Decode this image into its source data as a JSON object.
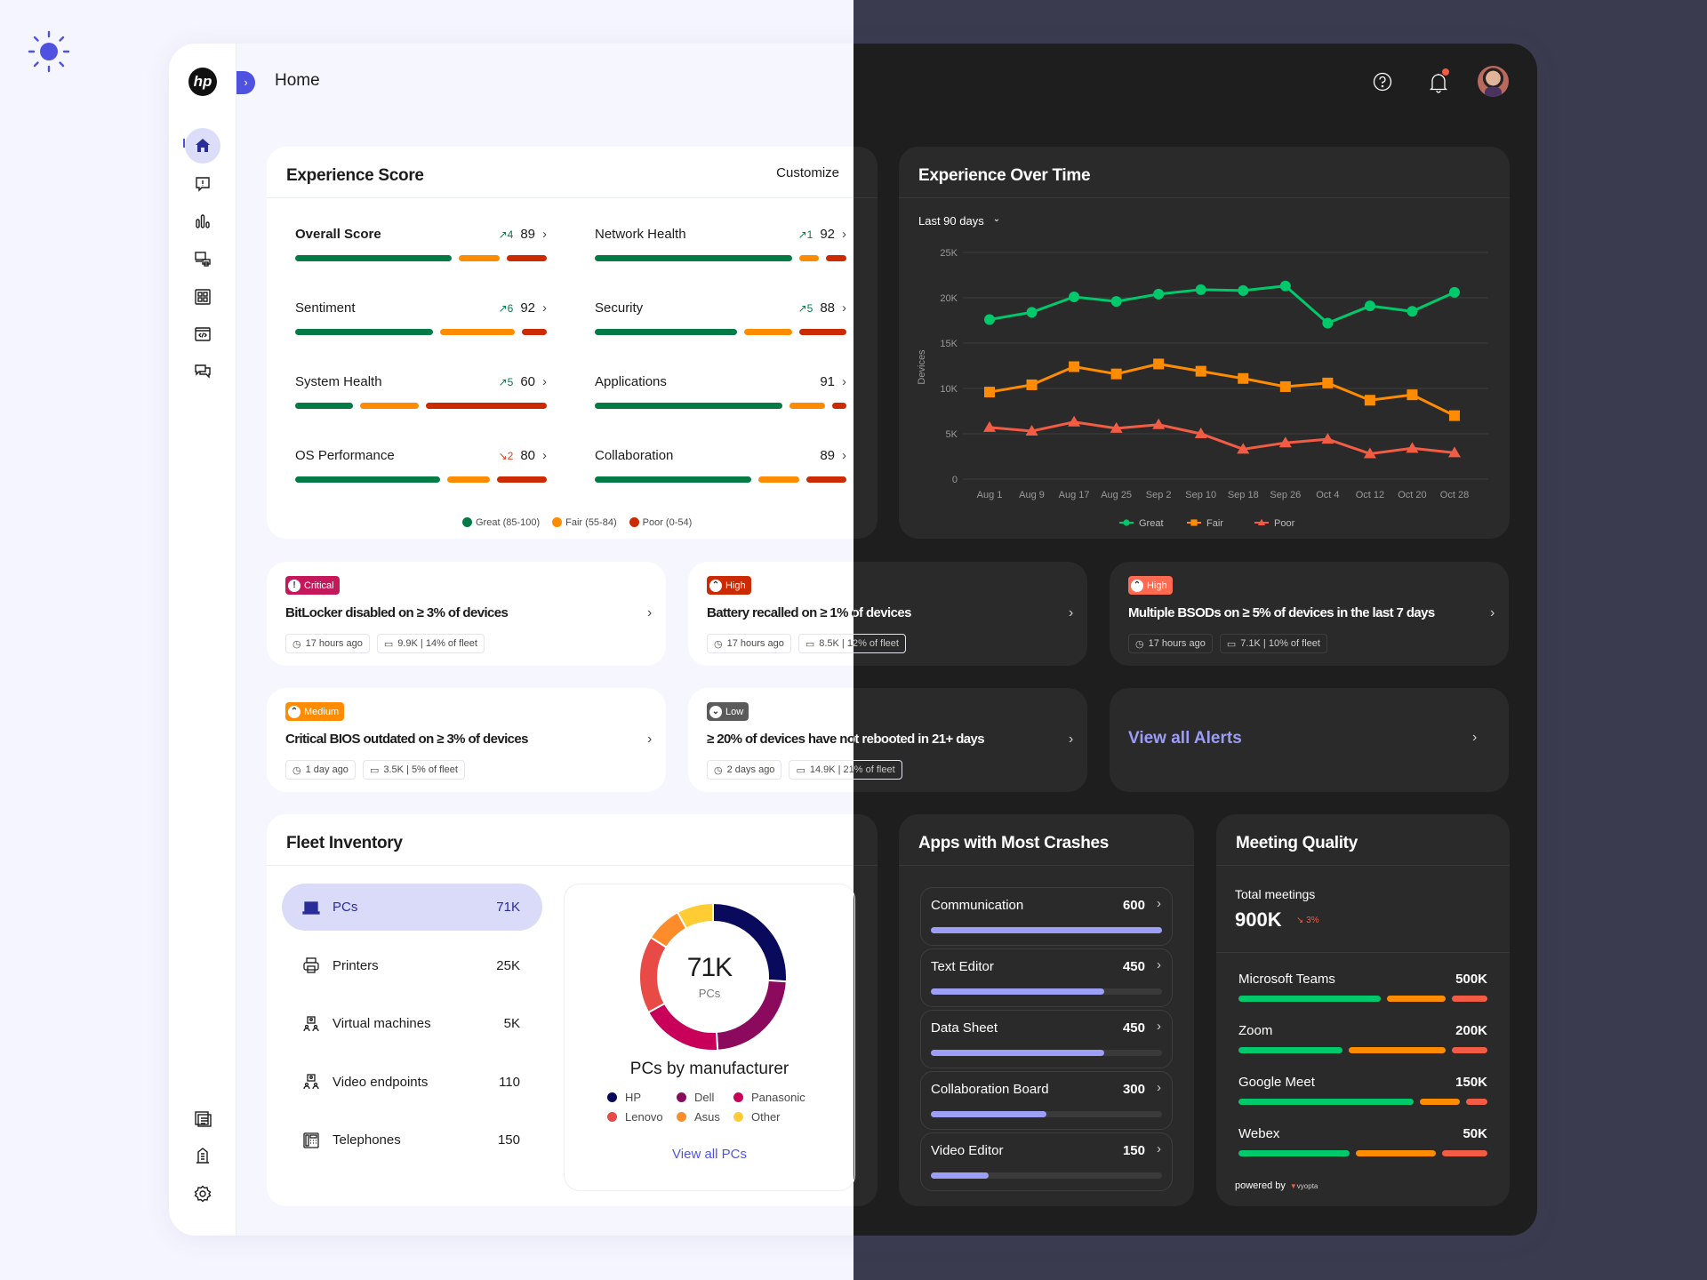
{
  "header": {
    "title": "Home",
    "help_icon": "help-circle-icon",
    "bell_icon": "bell-icon",
    "avatar": "user-avatar"
  },
  "theme": {
    "light_icon": "sun-icon",
    "dark_icon": "moon-icon"
  },
  "sidebar": {
    "logo": "hp",
    "items": [
      "home",
      "alerts",
      "analytics",
      "devices",
      "apps",
      "scripts",
      "feedback"
    ],
    "bottom_items": [
      "reports",
      "organization",
      "settings"
    ]
  },
  "experience_score": {
    "title": "Experience Score",
    "customize": "Customize",
    "rows": [
      {
        "label": "Overall Score",
        "delta": "↗4",
        "dir": "up",
        "score": "89",
        "segments": [
          62,
          16,
          16
        ]
      },
      {
        "label": "Network Health",
        "delta": "↗1",
        "dir": "up",
        "score": "92",
        "segments": [
          78,
          8,
          8
        ]
      },
      {
        "label": "Sentiment",
        "delta": "↗6",
        "dir": "up",
        "score": "92",
        "segments": [
          55,
          30,
          10
        ]
      },
      {
        "label": "Security",
        "delta": "↗5",
        "dir": "up",
        "score": "88",
        "segments": [
          57,
          19,
          19
        ]
      },
      {
        "label": "System Health",
        "delta": "↗5",
        "dir": "up",
        "score": "60",
        "segments": [
          23,
          23,
          48
        ]
      },
      {
        "label": "Applications",
        "delta": "",
        "dir": "",
        "score": "91",
        "segments": [
          68,
          13,
          5
        ]
      },
      {
        "label": "OS Performance",
        "delta": "↘2",
        "dir": "down",
        "score": "80",
        "segments": [
          58,
          17,
          20
        ]
      },
      {
        "label": "Collaboration",
        "delta": "",
        "dir": "",
        "score": "89",
        "segments": [
          62,
          16,
          16
        ]
      }
    ],
    "legend": [
      "Great (85-100)",
      "Fair (55-84)",
      "Poor (0-54)"
    ]
  },
  "chart_data": {
    "type": "line",
    "title": "Experience Over Time",
    "range_selector": "Last 90 days",
    "ylabel": "Devices",
    "ylim": [
      0,
      25000
    ],
    "yticks": [
      "0",
      "5K",
      "10K",
      "15K",
      "20K",
      "25K"
    ],
    "grid": true,
    "legend_position": "bottom",
    "x": [
      "Aug 1",
      "Aug 9",
      "Aug 17",
      "Aug 25",
      "Sep 2",
      "Sep 10",
      "Sep 18",
      "Sep 26",
      "Oct 4",
      "Oct 12",
      "Oct 20",
      "Oct 28"
    ],
    "series": [
      {
        "name": "Great",
        "color": "#00c96b",
        "marker": "circle",
        "values": [
          17600,
          18400,
          20100,
          19600,
          20400,
          20900,
          20800,
          21300,
          17200,
          19100,
          18500,
          20600
        ]
      },
      {
        "name": "Fair",
        "color": "#ff8c00",
        "marker": "square",
        "values": [
          9600,
          10400,
          12400,
          11600,
          12700,
          11900,
          11100,
          10200,
          10600,
          8700,
          9300,
          7000
        ]
      },
      {
        "name": "Poor",
        "color": "#f25c45",
        "marker": "triangle",
        "values": [
          5700,
          5300,
          6300,
          5600,
          6000,
          5000,
          3300,
          4000,
          4400,
          2800,
          3400,
          2900
        ]
      }
    ]
  },
  "alerts": [
    {
      "severity": "Critical",
      "color": "#c4185a",
      "title": "BitLocker disabled on ≥ 3% of devices",
      "time": "17 hours ago",
      "devices": "9.9K | 14% of fleet"
    },
    {
      "severity": "High",
      "color": "#cc2a00",
      "title": "Battery recalled on ≥ 1% of devices",
      "time": "17 hours ago",
      "devices": "8.5K | 12% of fleet"
    },
    {
      "severity": "High",
      "color": "#ff6a50",
      "title": "Multiple BSODs on ≥ 5% of devices in the last 7 days",
      "time": "17 hours ago",
      "devices": "7.1K | 10% of fleet"
    },
    {
      "severity": "Medium",
      "color": "#ff8c00",
      "title": "Critical BIOS outdated on ≥ 3% of devices",
      "time": "1 day ago",
      "devices": "3.5K | 5% of fleet"
    },
    {
      "severity": "Low",
      "color": "#5a5a5a",
      "title": "≥ 20% of devices have not rebooted in 21+ days",
      "time": "2 days ago",
      "devices": "14.9K | 21% of fleet"
    }
  ],
  "view_all_alerts": "View all Alerts",
  "fleet": {
    "title": "Fleet Inventory",
    "items": [
      {
        "label": "PCs",
        "value": "71K",
        "icon": "laptop-icon"
      },
      {
        "label": "Printers",
        "value": "25K",
        "icon": "printer-icon"
      },
      {
        "label": "Virtual machines",
        "value": "5K",
        "icon": "virtual-machine-icon"
      },
      {
        "label": "Video endpoints",
        "value": "110",
        "icon": "video-endpoint-icon"
      },
      {
        "label": "Telephones",
        "value": "150",
        "icon": "telephone-icon"
      }
    ],
    "donut": {
      "total": "71K",
      "unit": "PCs",
      "title": "PCs by manufacturer",
      "link": "View all PCs",
      "slices": [
        {
          "name": "HP",
          "share": 26,
          "color": "#0a0a5c"
        },
        {
          "name": "Dell",
          "share": 23,
          "color": "#8b0a5e"
        },
        {
          "name": "Panasonic",
          "share": 18,
          "color": "#c8005a"
        },
        {
          "name": "Lenovo",
          "share": 17,
          "color": "#e84a45"
        },
        {
          "name": "Asus",
          "share": 8,
          "color": "#ff8c2a"
        },
        {
          "name": "Other",
          "share": 8,
          "color": "#ffcc33"
        }
      ]
    }
  },
  "apps_crashes": {
    "title": "Apps with Most Crashes",
    "items": [
      {
        "name": "Communication",
        "value": "600",
        "fraction": 1.0
      },
      {
        "name": "Text Editor",
        "value": "450",
        "fraction": 0.75
      },
      {
        "name": "Data Sheet",
        "value": "450",
        "fraction": 0.75
      },
      {
        "name": "Collaboration Board",
        "value": "300",
        "fraction": 0.5
      },
      {
        "name": "Video Editor",
        "value": "150",
        "fraction": 0.25
      }
    ]
  },
  "meeting_quality": {
    "title": "Meeting Quality",
    "total_label": "Total meetings",
    "total": "900K",
    "change": "↘ 3%",
    "items": [
      {
        "name": "Microsoft Teams",
        "value": "500K",
        "segments": [
          60,
          25,
          15
        ]
      },
      {
        "name": "Zoom",
        "value": "200K",
        "segments": [
          44,
          41,
          15
        ]
      },
      {
        "name": "Google Meet",
        "value": "150K",
        "segments": [
          74,
          17,
          9
        ]
      },
      {
        "name": "Webex",
        "value": "50K",
        "segments": [
          47,
          34,
          19
        ]
      }
    ],
    "powered_by": "powered by",
    "vendor": "vyopta"
  }
}
